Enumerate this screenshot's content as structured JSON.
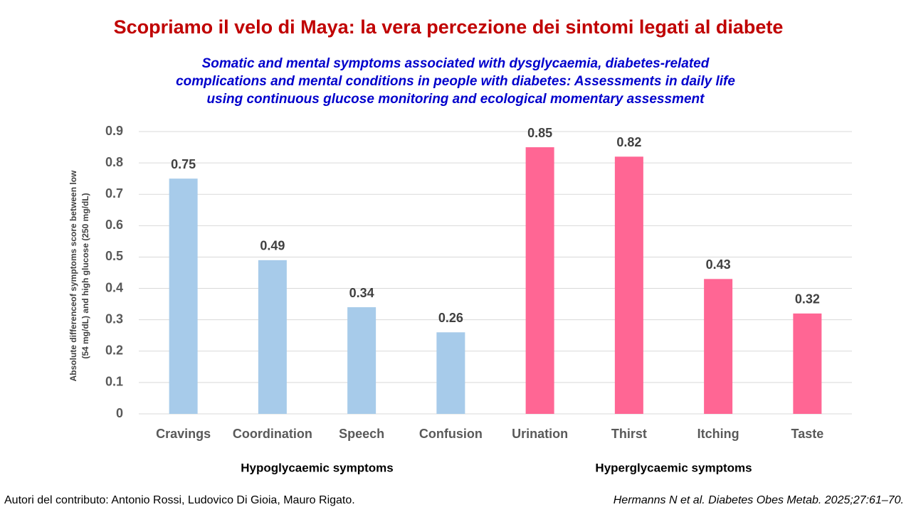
{
  "chart_data": {
    "type": "bar",
    "title": "Scopriamo il velo di Maya: la vera percezione dei sintomi legati al diabete",
    "subtitle": [
      "Somatic and mental symptoms associated with dysglycaemia, diabetes-related",
      "complications and mental conditions in people with diabetes: Assessments in daily life",
      "using continuous glucose monitoring and ecological momentary assessment"
    ],
    "y_label": [
      "Absolute differenceof symptoms score between low",
      "(54 mg/dL) and high glucose (250 mg/dL)"
    ],
    "categories": [
      "Cravings",
      "Coordination",
      "Speech",
      "Confusion",
      "Urination",
      "Thirst",
      "Itching",
      "Taste"
    ],
    "series": [
      {
        "name": "Hypoglycaemic symptoms",
        "color": "#a7cbea",
        "values": [
          0.75,
          0.49,
          0.34,
          0.26,
          null,
          null,
          null,
          null
        ]
      },
      {
        "name": "Hyperglycaemic symptoms",
        "color": "#ff6694",
        "values": [
          null,
          null,
          null,
          null,
          0.85,
          0.82,
          0.43,
          0.32
        ]
      }
    ],
    "ylim": [
      0,
      0.9
    ],
    "yticks": [
      0,
      0.1,
      0.2,
      0.3,
      0.4,
      0.5,
      0.6,
      0.7,
      0.8,
      0.9
    ],
    "grid": true
  },
  "footer": {
    "left": "Autori del contributo: Antonio Rossi, Ludovico Di Gioia, Mauro Rigato.",
    "right": "Hermanns N et al. Diabetes Obes Metab. 2025;27:61–70."
  }
}
